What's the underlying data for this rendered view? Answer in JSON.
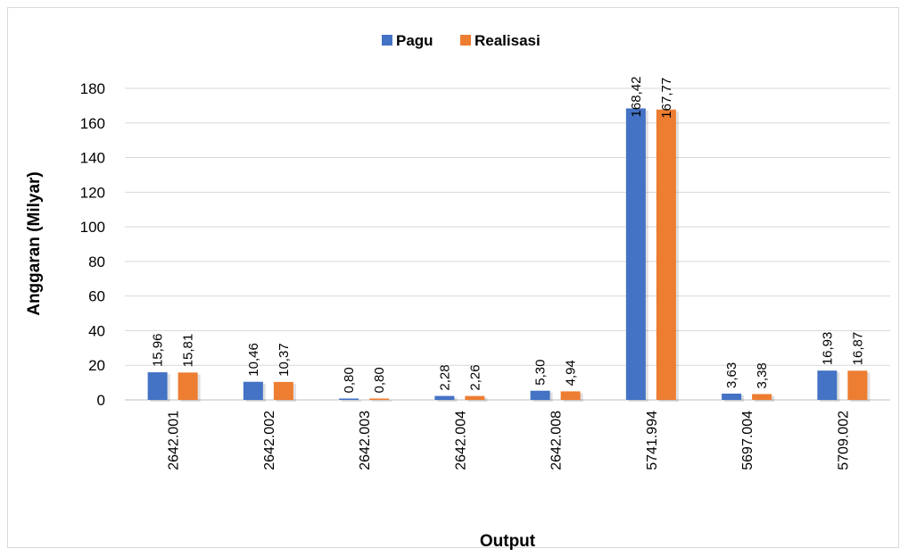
{
  "chart_data": {
    "type": "bar",
    "categories": [
      "2642.001",
      "2642.002",
      "2642.003",
      "2642.004",
      "2642.008",
      "5741.994",
      "5697.004",
      "5709.002"
    ],
    "series": [
      {
        "name": "Pagu",
        "color": "#4472C4",
        "values": [
          15.96,
          10.46,
          0.8,
          2.28,
          5.3,
          168.42,
          3.63,
          16.93
        ],
        "labels": [
          "15,96",
          "10,46",
          "0,80",
          "2,28",
          "5,30",
          "168,42",
          "3,63",
          "16,93"
        ]
      },
      {
        "name": "Realisasi",
        "color": "#ED7D31",
        "values": [
          15.81,
          10.37,
          0.8,
          2.26,
          4.94,
          167.77,
          3.38,
          16.87
        ],
        "labels": [
          "15,81",
          "10,37",
          "0,80",
          "2,26",
          "4,94",
          "167,77",
          "3,38",
          "16,87"
        ]
      }
    ],
    "xlabel": "Output",
    "ylabel": "Anggaran (Milyar)",
    "ylim": [
      0,
      180
    ],
    "yticks": [
      0,
      20,
      40,
      60,
      80,
      100,
      120,
      140,
      160,
      180
    ],
    "grid": true,
    "legend": "top-center"
  }
}
